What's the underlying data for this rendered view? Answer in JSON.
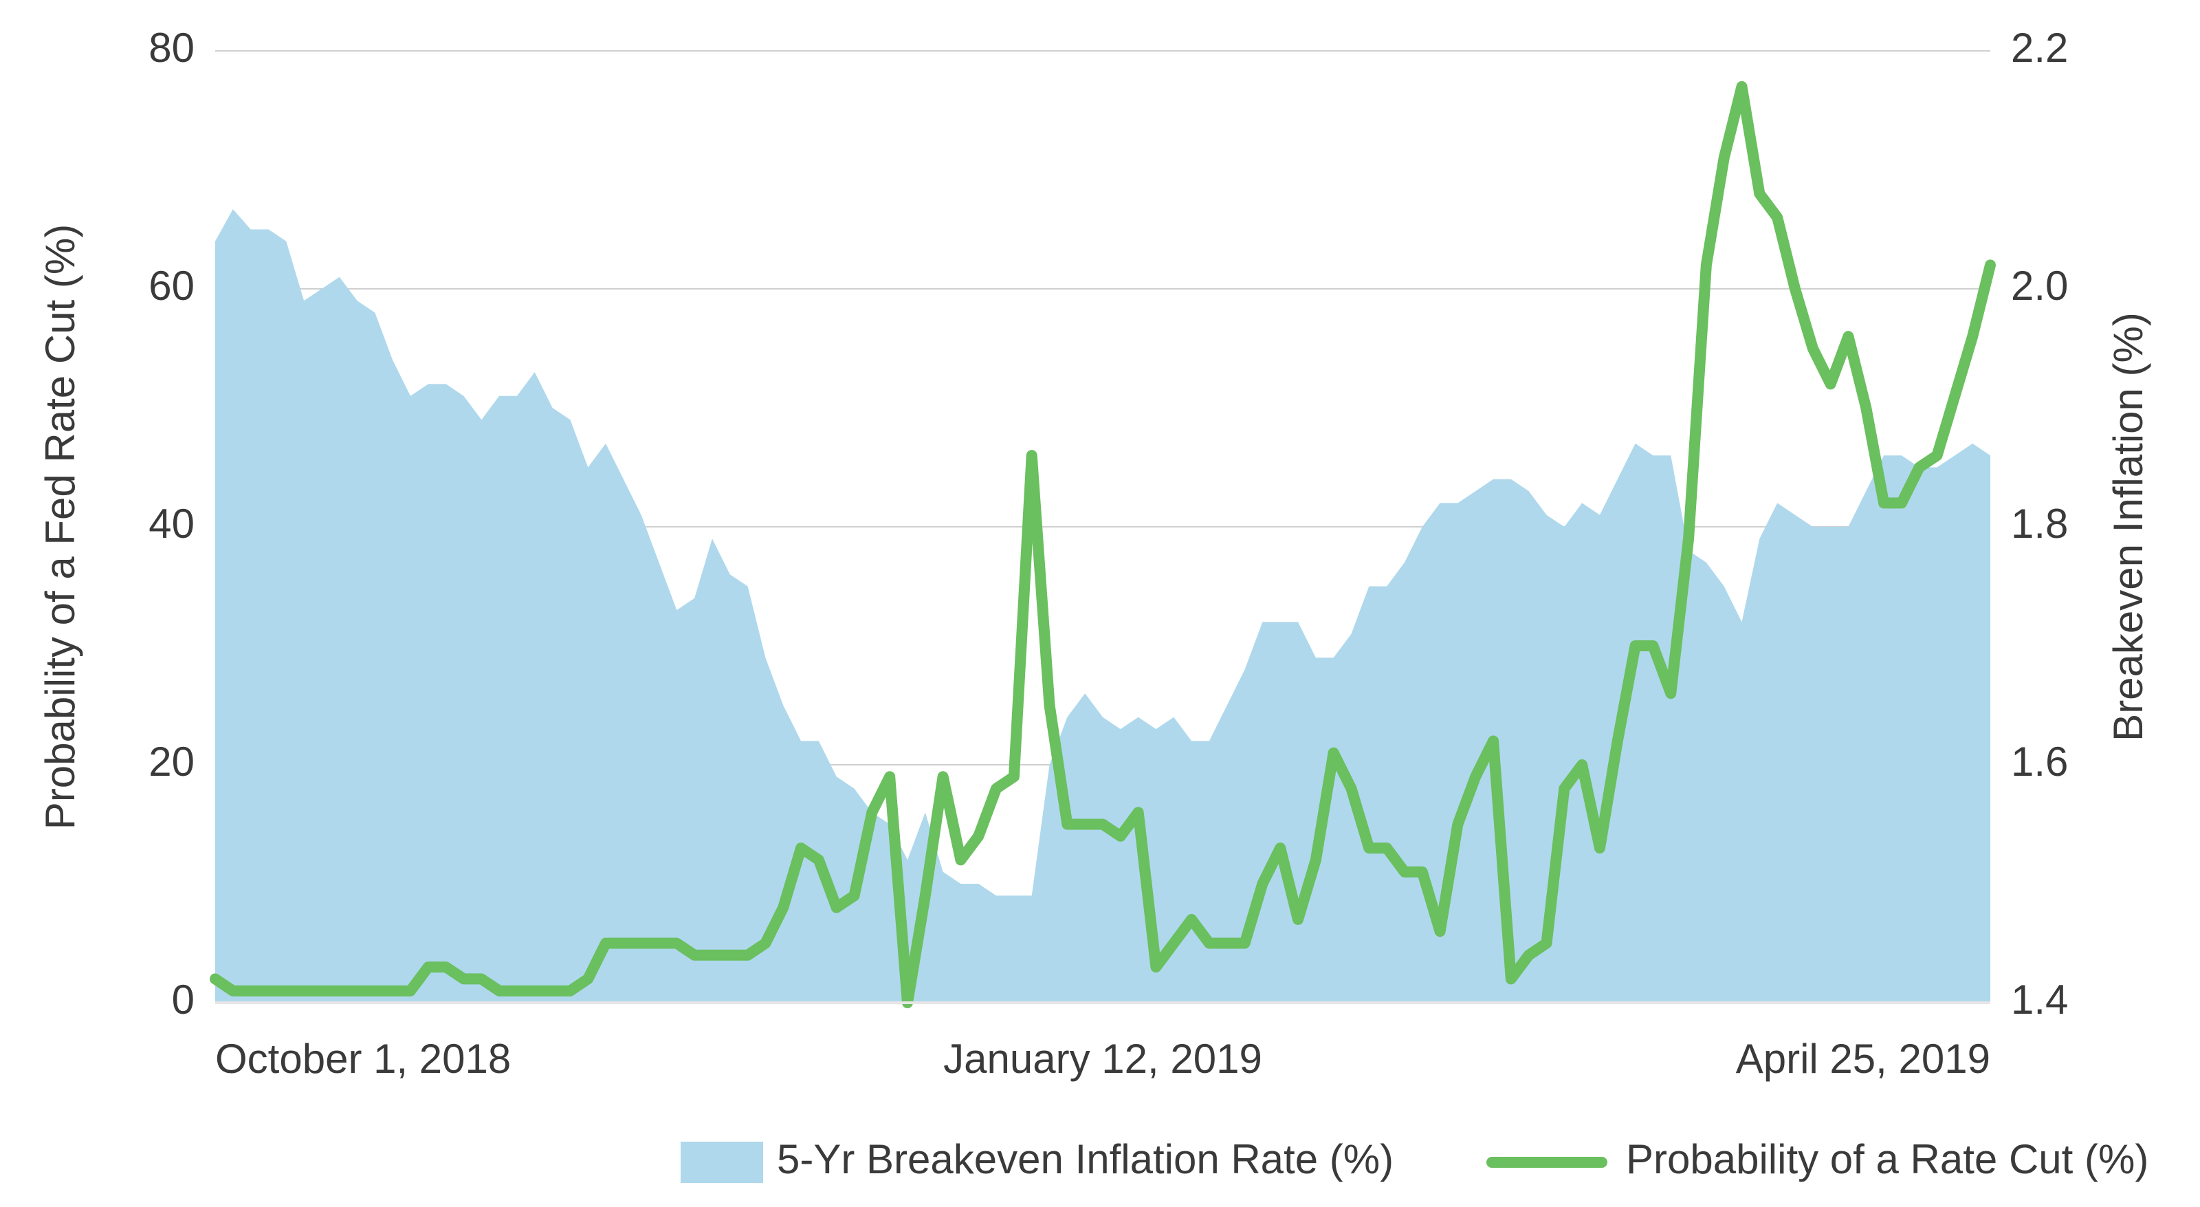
{
  "chart_data": {
    "type": "line",
    "ylabel": "Probability of a Fed Rate Cut (%)",
    "y2label": "Breakeven Inflation (%)",
    "categories": [
      "October 1, 2018",
      null,
      null,
      null,
      null,
      null,
      null,
      null,
      null,
      null,
      null,
      null,
      null,
      null,
      null,
      null,
      null,
      null,
      null,
      null,
      null,
      null,
      null,
      null,
      null,
      null,
      null,
      null,
      null,
      null,
      null,
      null,
      null,
      null,
      null,
      null,
      null,
      null,
      null,
      null,
      null,
      null,
      null,
      null,
      null,
      null,
      null,
      null,
      null,
      null,
      "January 12, 2019",
      null,
      null,
      null,
      null,
      null,
      null,
      null,
      null,
      null,
      null,
      null,
      null,
      null,
      null,
      null,
      null,
      null,
      null,
      null,
      null,
      null,
      null,
      null,
      null,
      null,
      null,
      null,
      null,
      null,
      null,
      null,
      null,
      null,
      null,
      null,
      null,
      null,
      null,
      null,
      null,
      null,
      null,
      null,
      null,
      null,
      null,
      null,
      null,
      null,
      "April 25, 2019"
    ],
    "ylim": [
      0,
      80
    ],
    "yticks": [
      0,
      20,
      40,
      60,
      80
    ],
    "y2lim": [
      1.4,
      2.2
    ],
    "y2ticks": [
      1.4,
      1.6,
      1.8,
      {
        "value": 2,
        "label": "2.0"
      },
      2.2
    ],
    "grid": true,
    "legend": "bottom",
    "series": [
      {
        "name": "5-Yr Breakeven Inflation Rate (%)",
        "type": "area",
        "axis": "y2",
        "color": "#afd8ec",
        "values": [
          2.04,
          2.067,
          2.05,
          2.05,
          2.04,
          1.99,
          2.0,
          2.01,
          1.99,
          1.98,
          1.94,
          1.91,
          1.92,
          1.92,
          1.91,
          1.89,
          1.91,
          1.91,
          1.93,
          1.9,
          1.89,
          1.85,
          1.87,
          1.84,
          1.81,
          1.77,
          1.73,
          1.74,
          1.79,
          1.76,
          1.75,
          1.69,
          1.65,
          1.62,
          1.62,
          1.59,
          1.58,
          1.56,
          1.55,
          1.52,
          1.56,
          1.51,
          1.5,
          1.5,
          1.49,
          1.49,
          1.49,
          1.6,
          1.64,
          1.66,
          1.64,
          1.63,
          1.64,
          1.63,
          1.64,
          1.62,
          1.62,
          1.65,
          1.68,
          1.72,
          1.72,
          1.72,
          1.69,
          1.69,
          1.71,
          1.75,
          1.75,
          1.77,
          1.8,
          1.82,
          1.82,
          1.83,
          1.84,
          1.84,
          1.83,
          1.81,
          1.8,
          1.82,
          1.81,
          1.84,
          1.87,
          1.86,
          1.86,
          1.78,
          1.77,
          1.75,
          1.72,
          1.79,
          1.82,
          1.81,
          1.8,
          1.8,
          1.8,
          1.83,
          1.86,
          1.86,
          1.85,
          1.85,
          1.86,
          1.87,
          1.86
        ]
      },
      {
        "name": "Probability of a Rate Cut (%)",
        "type": "line",
        "color": "#6abf5e",
        "values": [
          2,
          1,
          1,
          1,
          1,
          1,
          1,
          1,
          1,
          1,
          1,
          1,
          3,
          3,
          2,
          2,
          1,
          1,
          1,
          1,
          1,
          2,
          5,
          5,
          5,
          5,
          5,
          4,
          4,
          4,
          4,
          5,
          8,
          13,
          12,
          8,
          9,
          16,
          19,
          0,
          9,
          19,
          12,
          14,
          18,
          19,
          46,
          25,
          15,
          15,
          15,
          14,
          16,
          3,
          5,
          7,
          5,
          5,
          5,
          10,
          13,
          7,
          12,
          21,
          18,
          13,
          13,
          11,
          11,
          6,
          15,
          19,
          22,
          2,
          4,
          5,
          18,
          20,
          13,
          22,
          30,
          30,
          26,
          39,
          62,
          71,
          77,
          68,
          66,
          60,
          55,
          52,
          56,
          50,
          42,
          42,
          45,
          46,
          51,
          56,
          62
        ]
      }
    ]
  }
}
